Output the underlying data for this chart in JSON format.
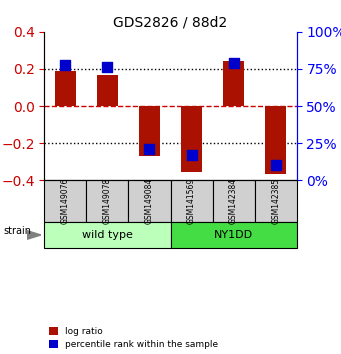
{
  "title": "GDS2826 / 88d2",
  "samples": [
    "GSM149076",
    "GSM149078",
    "GSM149084",
    "GSM141569",
    "GSM142384",
    "GSM142385"
  ],
  "log_ratios": [
    0.19,
    0.165,
    -0.27,
    -0.355,
    0.245,
    -0.365
  ],
  "percentile_ranks": [
    78,
    76,
    21,
    17,
    79,
    10
  ],
  "groups": [
    {
      "label": "wild type",
      "samples": [
        0,
        1,
        2
      ],
      "color": "#bbffbb"
    },
    {
      "label": "NY1DD",
      "samples": [
        3,
        4,
        5
      ],
      "color": "#44dd44"
    }
  ],
  "bar_color": "#aa1100",
  "dot_color": "#0000cc",
  "ylim": [
    -0.4,
    0.4
  ],
  "y2lim": [
    0,
    100
  ],
  "yticks": [
    -0.4,
    -0.2,
    0.0,
    0.2,
    0.4
  ],
  "y2ticks": [
    0,
    25,
    50,
    75,
    100
  ],
  "hlines": [
    -0.2,
    0.0,
    0.2
  ],
  "hline_colors": {
    "0.0": "#cc0000",
    "-0.2": "#000000",
    "0.2": "#000000"
  },
  "hline_styles": {
    "0.0": "dashed",
    "-0.2": "dotted",
    "0.2": "dotted"
  },
  "bar_width": 0.5,
  "dot_size": 55,
  "legend_items": [
    {
      "label": "log ratio",
      "color": "#aa1100"
    },
    {
      "label": "percentile rank within the sample",
      "color": "#0000cc"
    }
  ],
  "strain_label": "strain",
  "fig_width": 3.41,
  "fig_height": 3.54
}
